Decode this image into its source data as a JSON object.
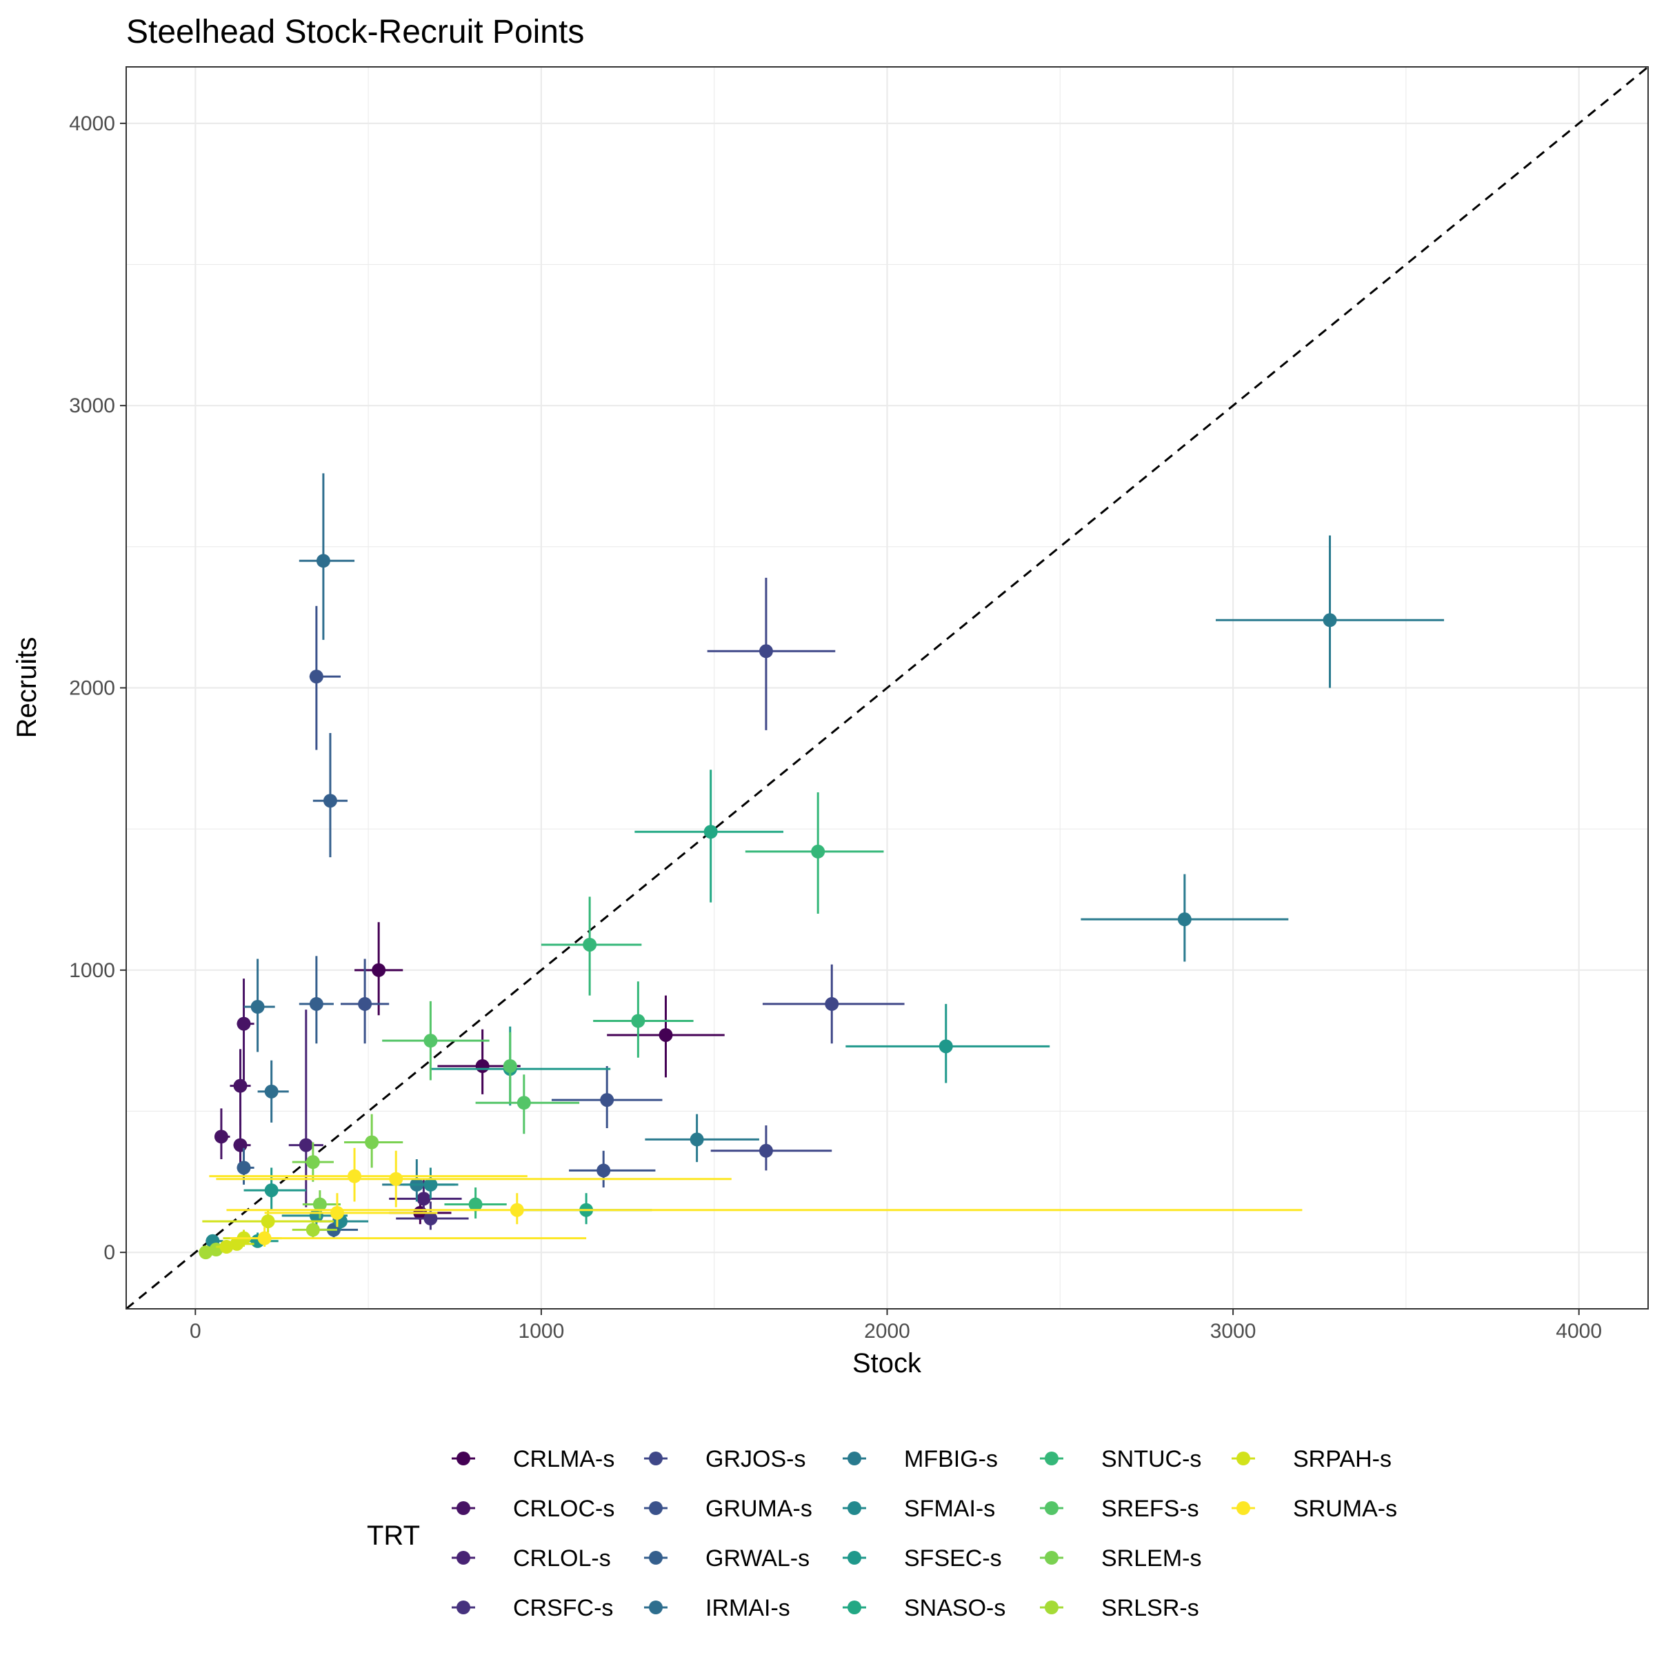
{
  "chart_data": {
    "type": "scatter",
    "title": "Steelhead Stock-Recruit Points",
    "xlabel": "Stock",
    "ylabel": "Recruits",
    "xlim": [
      -200,
      4200
    ],
    "ylim": [
      -200,
      4200
    ],
    "xticks": [
      0,
      1000,
      2000,
      3000,
      4000
    ],
    "yticks": [
      0,
      1000,
      2000,
      3000,
      4000
    ],
    "xtick_labels": [
      "0",
      "1000",
      "2000",
      "3000",
      "4000"
    ],
    "ytick_labels": [
      "0",
      "1000",
      "2000",
      "3000",
      "4000"
    ],
    "grid": true,
    "reference_line": "y = x (dashed)",
    "legend": {
      "title": "TRT",
      "position": "bottom"
    },
    "series": [
      {
        "name": "CRLMA-s",
        "color": "#440154",
        "points": [
          {
            "x": 530,
            "y": 1000,
            "xmin": 460,
            "xmax": 600,
            "ymin": 840,
            "ymax": 1170
          },
          {
            "x": 1360,
            "y": 770,
            "xmin": 1190,
            "xmax": 1530,
            "ymin": 620,
            "ymax": 910
          },
          {
            "x": 830,
            "y": 660,
            "xmin": 700,
            "xmax": 940,
            "ymin": 560,
            "ymax": 790
          },
          {
            "x": 650,
            "y": 140,
            "xmin": 560,
            "xmax": 740,
            "ymin": 100,
            "ymax": 190
          }
        ]
      },
      {
        "name": "CRLOC-s",
        "color": "#471365",
        "points": [
          {
            "x": 140,
            "y": 810,
            "xmin": 120,
            "xmax": 170,
            "ymin": 610,
            "ymax": 970
          },
          {
            "x": 130,
            "y": 590,
            "xmin": 100,
            "xmax": 160,
            "ymin": 450,
            "ymax": 720
          },
          {
            "x": 75,
            "y": 410,
            "xmin": 60,
            "xmax": 100,
            "ymin": 330,
            "ymax": 510
          },
          {
            "x": 130,
            "y": 380,
            "xmin": 110,
            "xmax": 160,
            "ymin": 300,
            "ymax": 470
          }
        ]
      },
      {
        "name": "CRLOL-s",
        "color": "#482374",
        "points": [
          {
            "x": 320,
            "y": 380,
            "xmin": 270,
            "xmax": 370,
            "ymin": 160,
            "ymax": 860
          },
          {
            "x": 660,
            "y": 190,
            "xmin": 560,
            "xmax": 770,
            "ymin": 140,
            "ymax": 260
          }
        ]
      },
      {
        "name": "CRSFC-s",
        "color": "#46327e",
        "points": [
          {
            "x": 680,
            "y": 120,
            "xmin": 580,
            "xmax": 790,
            "ymin": 80,
            "ymax": 180
          }
        ]
      },
      {
        "name": "GRJOS-s",
        "color": "#3f4788",
        "points": [
          {
            "x": 1650,
            "y": 2130,
            "xmin": 1480,
            "xmax": 1850,
            "ymin": 1850,
            "ymax": 2390
          },
          {
            "x": 1840,
            "y": 880,
            "xmin": 1640,
            "xmax": 2050,
            "ymin": 740,
            "ymax": 1020
          },
          {
            "x": 1650,
            "y": 360,
            "xmin": 1490,
            "xmax": 1840,
            "ymin": 290,
            "ymax": 450
          }
        ]
      },
      {
        "name": "GRUMA-s",
        "color": "#3b528b",
        "points": [
          {
            "x": 350,
            "y": 2040,
            "xmin": 330,
            "xmax": 420,
            "ymin": 1780,
            "ymax": 2290
          },
          {
            "x": 1190,
            "y": 540,
            "xmin": 1030,
            "xmax": 1350,
            "ymin": 440,
            "ymax": 660
          },
          {
            "x": 1180,
            "y": 290,
            "xmin": 1080,
            "xmax": 1330,
            "ymin": 230,
            "ymax": 360
          },
          {
            "x": 490,
            "y": 880,
            "xmin": 420,
            "xmax": 560,
            "ymin": 740,
            "ymax": 1040
          }
        ]
      },
      {
        "name": "GRWAL-s",
        "color": "#355f8d",
        "points": [
          {
            "x": 390,
            "y": 1600,
            "xmin": 340,
            "xmax": 440,
            "ymin": 1400,
            "ymax": 1840
          },
          {
            "x": 350,
            "y": 880,
            "xmin": 300,
            "xmax": 400,
            "ymin": 740,
            "ymax": 1050
          },
          {
            "x": 140,
            "y": 300,
            "xmin": 120,
            "xmax": 170,
            "ymin": 240,
            "ymax": 370
          },
          {
            "x": 400,
            "y": 80,
            "xmin": 340,
            "xmax": 470,
            "ymin": 50,
            "ymax": 120
          }
        ]
      },
      {
        "name": "IRMAI-s",
        "color": "#2e6e8e",
        "points": [
          {
            "x": 370,
            "y": 2450,
            "xmin": 300,
            "xmax": 460,
            "ymin": 2170,
            "ymax": 2760
          },
          {
            "x": 180,
            "y": 870,
            "xmin": 140,
            "xmax": 230,
            "ymin": 710,
            "ymax": 1040
          },
          {
            "x": 220,
            "y": 570,
            "xmin": 180,
            "xmax": 270,
            "ymin": 460,
            "ymax": 680
          }
        ]
      },
      {
        "name": "MFBIG-s",
        "color": "#297a8e",
        "points": [
          {
            "x": 3280,
            "y": 2240,
            "xmin": 2950,
            "xmax": 3610,
            "ymin": 2000,
            "ymax": 2540
          },
          {
            "x": 2860,
            "y": 1180,
            "xmin": 2560,
            "xmax": 3160,
            "ymin": 1030,
            "ymax": 1340
          },
          {
            "x": 1450,
            "y": 400,
            "xmin": 1300,
            "xmax": 1630,
            "ymin": 320,
            "ymax": 490
          },
          {
            "x": 640,
            "y": 240,
            "xmin": 540,
            "xmax": 750,
            "ymin": 180,
            "ymax": 330
          }
        ]
      },
      {
        "name": "SFMAI-s",
        "color": "#23898e",
        "points": [
          {
            "x": 680,
            "y": 240,
            "xmin": 600,
            "xmax": 760,
            "ymin": 190,
            "ymax": 300
          },
          {
            "x": 420,
            "y": 110,
            "xmin": 360,
            "xmax": 500,
            "ymin": 80,
            "ymax": 150
          },
          {
            "x": 350,
            "y": 130,
            "xmin": 250,
            "xmax": 440,
            "ymin": 80,
            "ymax": 190
          },
          {
            "x": 50,
            "y": 40,
            "xmin": 30,
            "xmax": 80,
            "ymin": 20,
            "ymax": 60
          }
        ]
      },
      {
        "name": "SFSEC-s",
        "color": "#1f988b",
        "points": [
          {
            "x": 2170,
            "y": 730,
            "xmin": 1880,
            "xmax": 2470,
            "ymin": 600,
            "ymax": 880
          },
          {
            "x": 910,
            "y": 650,
            "xmin": 680,
            "xmax": 1200,
            "ymin": 520,
            "ymax": 800
          },
          {
            "x": 220,
            "y": 220,
            "xmin": 140,
            "xmax": 320,
            "ymin": 150,
            "ymax": 300
          },
          {
            "x": 180,
            "y": 40,
            "xmin": 120,
            "xmax": 240,
            "ymin": 20,
            "ymax": 70
          }
        ]
      },
      {
        "name": "SNASO-s",
        "color": "#22a884",
        "points": [
          {
            "x": 1490,
            "y": 1490,
            "xmin": 1270,
            "xmax": 1700,
            "ymin": 1240,
            "ymax": 1710
          },
          {
            "x": 1130,
            "y": 150,
            "xmin": 940,
            "xmax": 1320,
            "ymin": 100,
            "ymax": 210
          }
        ]
      },
      {
        "name": "SNTUC-s",
        "color": "#35b779",
        "points": [
          {
            "x": 1800,
            "y": 1420,
            "xmin": 1590,
            "xmax": 1990,
            "ymin": 1200,
            "ymax": 1630
          },
          {
            "x": 1140,
            "y": 1090,
            "xmin": 1000,
            "xmax": 1290,
            "ymin": 910,
            "ymax": 1260
          },
          {
            "x": 1280,
            "y": 820,
            "xmin": 1150,
            "xmax": 1440,
            "ymin": 690,
            "ymax": 960
          },
          {
            "x": 810,
            "y": 170,
            "xmin": 720,
            "xmax": 900,
            "ymin": 120,
            "ymax": 230
          }
        ]
      },
      {
        "name": "SREFS-s",
        "color": "#54c568",
        "points": [
          {
            "x": 680,
            "y": 750,
            "xmin": 540,
            "xmax": 850,
            "ymin": 610,
            "ymax": 890
          },
          {
            "x": 950,
            "y": 530,
            "xmin": 810,
            "xmax": 1110,
            "ymin": 420,
            "ymax": 630
          },
          {
            "x": 910,
            "y": 660,
            "xmin": 900,
            "xmax": 930,
            "ymin": 530,
            "ymax": 780
          }
        ]
      },
      {
        "name": "SRLEM-s",
        "color": "#7ad151",
        "points": [
          {
            "x": 510,
            "y": 390,
            "xmin": 430,
            "xmax": 600,
            "ymin": 300,
            "ymax": 490
          },
          {
            "x": 340,
            "y": 320,
            "xmin": 280,
            "xmax": 400,
            "ymin": 250,
            "ymax": 390
          },
          {
            "x": 360,
            "y": 170,
            "xmin": 310,
            "xmax": 420,
            "ymin": 120,
            "ymax": 220
          }
        ]
      },
      {
        "name": "SRLSR-s",
        "color": "#a5db36",
        "points": [
          {
            "x": 340,
            "y": 80,
            "xmin": 280,
            "xmax": 410,
            "ymin": 50,
            "ymax": 110
          },
          {
            "x": 60,
            "y": 10,
            "xmin": 40,
            "xmax": 80,
            "ymin": 0,
            "ymax": 20
          },
          {
            "x": 30,
            "y": 0,
            "xmin": 20,
            "xmax": 40,
            "ymin": -10,
            "ymax": 10
          }
        ]
      },
      {
        "name": "SRPAH-s",
        "color": "#d2e21b",
        "points": [
          {
            "x": 210,
            "y": 110,
            "xmin": 20,
            "xmax": 400,
            "ymin": 70,
            "ymax": 150
          },
          {
            "x": 140,
            "y": 50,
            "xmin": 80,
            "xmax": 250,
            "ymin": 20,
            "ymax": 80
          },
          {
            "x": 120,
            "y": 30,
            "xmin": 80,
            "xmax": 170,
            "ymin": 10,
            "ymax": 50
          },
          {
            "x": 90,
            "y": 20,
            "xmin": 60,
            "xmax": 120,
            "ymin": 0,
            "ymax": 40
          }
        ]
      },
      {
        "name": "SRUMA-s",
        "color": "#fde725",
        "points": [
          {
            "x": 460,
            "y": 270,
            "xmin": 40,
            "xmax": 960,
            "ymin": 180,
            "ymax": 370
          },
          {
            "x": 580,
            "y": 260,
            "xmin": 60,
            "xmax": 1550,
            "ymin": 160,
            "ymax": 360
          },
          {
            "x": 930,
            "y": 150,
            "xmin": 90,
            "xmax": 3200,
            "ymin": 100,
            "ymax": 210
          },
          {
            "x": 410,
            "y": 140,
            "xmin": 200,
            "xmax": 700,
            "ymin": 90,
            "ymax": 210
          },
          {
            "x": 200,
            "y": 50,
            "xmin": 100,
            "xmax": 1130,
            "ymin": 20,
            "ymax": 90
          }
        ]
      }
    ]
  }
}
